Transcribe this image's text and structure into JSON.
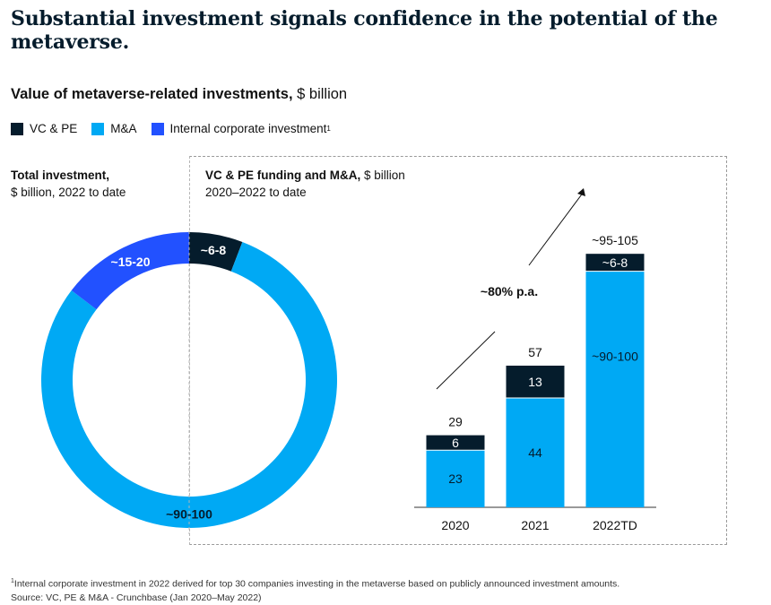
{
  "headline": "Substantial investment signals confidence in the potential of the metaverse.",
  "chart_title": {
    "bold": "Value of metaverse-related investments,",
    "rest": " $ billion"
  },
  "legend": [
    {
      "label": "VC & PE",
      "color": "#051c2c"
    },
    {
      "label": "M&A",
      "color": "#00a9f4"
    },
    {
      "label": "Internal corporate investment",
      "color": "#2251ff",
      "footnote_mark": "1"
    }
  ],
  "left_panel": {
    "title_bold": "Total investment,",
    "subtitle": "$ billion, 2022 to date"
  },
  "right_panel": {
    "title_bold": "VC & PE funding and M&A,",
    "title_rest": " $ billion",
    "subtitle": "2020–2022 to date"
  },
  "chart_data": [
    {
      "type": "pie",
      "donut": true,
      "title": "Total investment,",
      "subtitle": "$ billion, 2022 to date",
      "slices": [
        {
          "series": "VC & PE",
          "label": "~6-8",
          "value": 7,
          "color": "#051c2c"
        },
        {
          "series": "M&A",
          "label": "~90-100",
          "value": 95,
          "color": "#00a9f4"
        },
        {
          "series": "Internal corporate investment",
          "label": "~15-20",
          "value": 17.5,
          "color": "#2251ff"
        }
      ]
    },
    {
      "type": "bar",
      "stacked": true,
      "title": "VC & PE funding and M&A,",
      "subtitle": "2020–2022 to date",
      "unit": "$ billion",
      "categories": [
        "2020",
        "2021",
        "2022TD"
      ],
      "series": [
        {
          "name": "M&A",
          "color": "#00a9f4",
          "values": [
            23,
            44,
            95
          ],
          "labels": [
            "23",
            "44",
            "~90-100"
          ]
        },
        {
          "name": "VC & PE",
          "color": "#051c2c",
          "values": [
            6,
            13,
            7
          ],
          "labels": [
            "6",
            "13",
            "~6-8"
          ]
        }
      ],
      "totals": [
        29,
        57,
        102
      ],
      "total_labels": [
        "29",
        "57",
        "~95-105"
      ],
      "annotation": "~80% p.a.",
      "ylim": [
        0,
        110
      ]
    }
  ],
  "footnote": {
    "mark": "1",
    "text": "Internal corporate investment in 2022 derived for top 30 companies investing in the metaverse based on publicly announced investment amounts.",
    "source": "Source: VC, PE & M&A - Crunchbase (Jan 2020–May 2022)"
  }
}
